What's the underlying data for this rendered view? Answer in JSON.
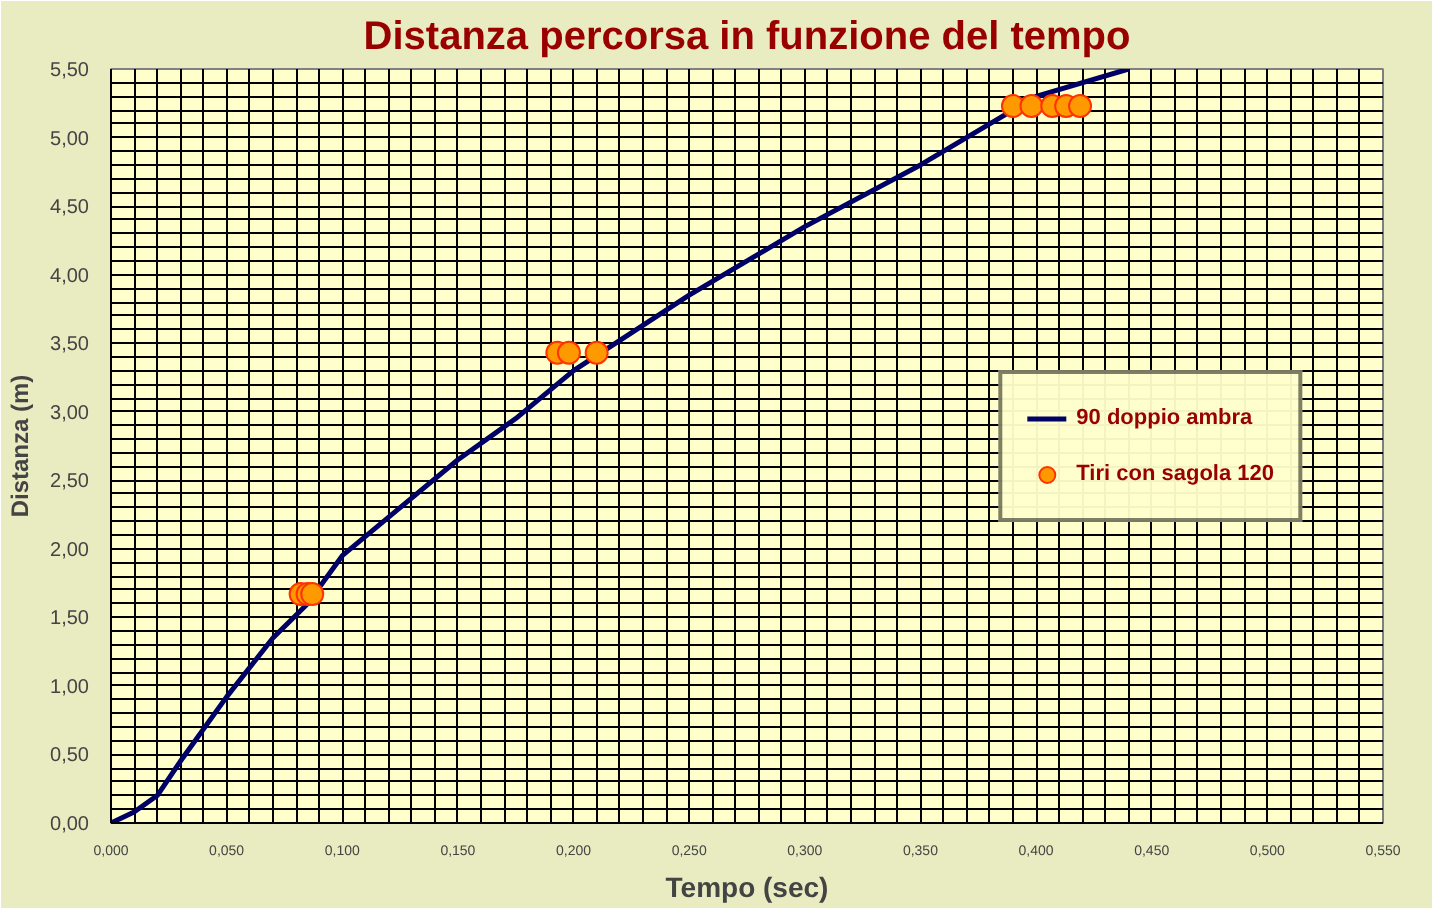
{
  "chart_data": {
    "type": "line",
    "title": "Distanza percorsa in funzione del tempo",
    "xlabel": "Tempo (sec)",
    "ylabel": "Distanza (m)",
    "xlim": [
      0,
      0.55
    ],
    "ylim": [
      0,
      5.5
    ],
    "xticks": [
      {
        "value": 0,
        "label": "0,000"
      },
      {
        "value": 0.01,
        "label": null
      },
      {
        "value": 0.02,
        "label": null
      },
      {
        "value": 0.03,
        "label": null
      },
      {
        "value": 0.04,
        "label": null
      },
      {
        "value": 0.05,
        "label": "0,050"
      },
      {
        "value": 0.06,
        "label": null
      },
      {
        "value": 0.07,
        "label": null
      },
      {
        "value": 0.08,
        "label": null
      },
      {
        "value": 0.09,
        "label": null
      },
      {
        "value": 0.1,
        "label": "0,100"
      },
      {
        "value": 0.11,
        "label": null
      },
      {
        "value": 0.12,
        "label": null
      },
      {
        "value": 0.13,
        "label": null
      },
      {
        "value": 0.14,
        "label": null
      },
      {
        "value": 0.15,
        "label": "0,150"
      },
      {
        "value": 0.16,
        "label": null
      },
      {
        "value": 0.17,
        "label": null
      },
      {
        "value": 0.18,
        "label": null
      },
      {
        "value": 0.19,
        "label": null
      },
      {
        "value": 0.2,
        "label": "0,200"
      },
      {
        "value": 0.21,
        "label": null
      },
      {
        "value": 0.22,
        "label": null
      },
      {
        "value": 0.23,
        "label": null
      },
      {
        "value": 0.24,
        "label": null
      },
      {
        "value": 0.25,
        "label": "0,250"
      },
      {
        "value": 0.26,
        "label": null
      },
      {
        "value": 0.27,
        "label": null
      },
      {
        "value": 0.28,
        "label": null
      },
      {
        "value": 0.29,
        "label": null
      },
      {
        "value": 0.3,
        "label": "0,300"
      },
      {
        "value": 0.31,
        "label": null
      },
      {
        "value": 0.32,
        "label": null
      },
      {
        "value": 0.33,
        "label": null
      },
      {
        "value": 0.34,
        "label": null
      },
      {
        "value": 0.35,
        "label": "0,350"
      },
      {
        "value": 0.36,
        "label": null
      },
      {
        "value": 0.37,
        "label": null
      },
      {
        "value": 0.38,
        "label": null
      },
      {
        "value": 0.39,
        "label": null
      },
      {
        "value": 0.4,
        "label": "0,400"
      },
      {
        "value": 0.41,
        "label": null
      },
      {
        "value": 0.42,
        "label": null
      },
      {
        "value": 0.43,
        "label": null
      },
      {
        "value": 0.44,
        "label": null
      },
      {
        "value": 0.45,
        "label": "0,450"
      },
      {
        "value": 0.46,
        "label": null
      },
      {
        "value": 0.47,
        "label": null
      },
      {
        "value": 0.48,
        "label": null
      },
      {
        "value": 0.49,
        "label": null
      },
      {
        "value": 0.5,
        "label": "0,500"
      },
      {
        "value": 0.51,
        "label": null
      },
      {
        "value": 0.52,
        "label": null
      },
      {
        "value": 0.53,
        "label": null
      },
      {
        "value": 0.54,
        "label": null
      },
      {
        "value": 0.55,
        "label": "0,550"
      }
    ],
    "yticks": [
      {
        "value": 0,
        "label": "0,00"
      },
      {
        "value": 0.1,
        "label": null
      },
      {
        "value": 0.2,
        "label": null
      },
      {
        "value": 0.3,
        "label": null
      },
      {
        "value": 0.4,
        "label": null
      },
      {
        "value": 0.5,
        "label": "0,50"
      },
      {
        "value": 0.6,
        "label": null
      },
      {
        "value": 0.7,
        "label": null
      },
      {
        "value": 0.8,
        "label": null
      },
      {
        "value": 0.9,
        "label": null
      },
      {
        "value": 1,
        "label": "1,00"
      },
      {
        "value": 1.1,
        "label": null
      },
      {
        "value": 1.2,
        "label": null
      },
      {
        "value": 1.3,
        "label": null
      },
      {
        "value": 1.4,
        "label": null
      },
      {
        "value": 1.5,
        "label": "1,50"
      },
      {
        "value": 1.6,
        "label": null
      },
      {
        "value": 1.7,
        "label": null
      },
      {
        "value": 1.8,
        "label": null
      },
      {
        "value": 1.9,
        "label": null
      },
      {
        "value": 2,
        "label": "2,00"
      },
      {
        "value": 2.1,
        "label": null
      },
      {
        "value": 2.2,
        "label": null
      },
      {
        "value": 2.3,
        "label": null
      },
      {
        "value": 2.4,
        "label": null
      },
      {
        "value": 2.5,
        "label": "2,50"
      },
      {
        "value": 2.6,
        "label": null
      },
      {
        "value": 2.7,
        "label": null
      },
      {
        "value": 2.8,
        "label": null
      },
      {
        "value": 2.9,
        "label": null
      },
      {
        "value": 3,
        "label": "3,00"
      },
      {
        "value": 3.1,
        "label": null
      },
      {
        "value": 3.2,
        "label": null
      },
      {
        "value": 3.3,
        "label": null
      },
      {
        "value": 3.4,
        "label": null
      },
      {
        "value": 3.5,
        "label": "3,50"
      },
      {
        "value": 3.6,
        "label": null
      },
      {
        "value": 3.7,
        "label": null
      },
      {
        "value": 3.8,
        "label": null
      },
      {
        "value": 3.9,
        "label": null
      },
      {
        "value": 4,
        "label": "4,00"
      },
      {
        "value": 4.1,
        "label": null
      },
      {
        "value": 4.2,
        "label": null
      },
      {
        "value": 4.3,
        "label": null
      },
      {
        "value": 4.4,
        "label": null
      },
      {
        "value": 4.5,
        "label": "4,50"
      },
      {
        "value": 4.6,
        "label": null
      },
      {
        "value": 4.7,
        "label": null
      },
      {
        "value": 4.8,
        "label": null
      },
      {
        "value": 4.9,
        "label": null
      },
      {
        "value": 5,
        "label": "5,00"
      },
      {
        "value": 5.1,
        "label": null
      },
      {
        "value": 5.2,
        "label": null
      },
      {
        "value": 5.3,
        "label": null
      },
      {
        "value": 5.4,
        "label": null
      },
      {
        "value": 5.5,
        "label": "5,50"
      }
    ],
    "grid": true,
    "legend": "right",
    "series": [
      {
        "name": "90 doppio ambra",
        "color": "#000066",
        "marker": "none",
        "x": [
          0,
          0.01,
          0.02,
          0.03,
          0.05,
          0.07,
          0.085,
          0.1,
          0.125,
          0.15,
          0.175,
          0.2,
          0.25,
          0.3,
          0.35,
          0.4,
          0.44
        ],
        "values": [
          0,
          0.08,
          0.2,
          0.45,
          0.92,
          1.35,
          1.6,
          1.95,
          2.3,
          2.65,
          2.95,
          3.3,
          3.85,
          4.35,
          4.8,
          5.3,
          5.5
        ]
      },
      {
        "name": "Tiri con sagola 120",
        "type": "scatter",
        "color": "#ff9900",
        "marker": "circle",
        "x": [
          0.082,
          0.085,
          0.087,
          0.193,
          0.198,
          0.21,
          0.39,
          0.398,
          0.407,
          0.413,
          0.419
        ],
        "values": [
          1.67,
          1.67,
          1.67,
          3.43,
          3.43,
          3.43,
          5.23,
          5.23,
          5.23,
          5.23,
          5.23
        ]
      }
    ]
  }
}
